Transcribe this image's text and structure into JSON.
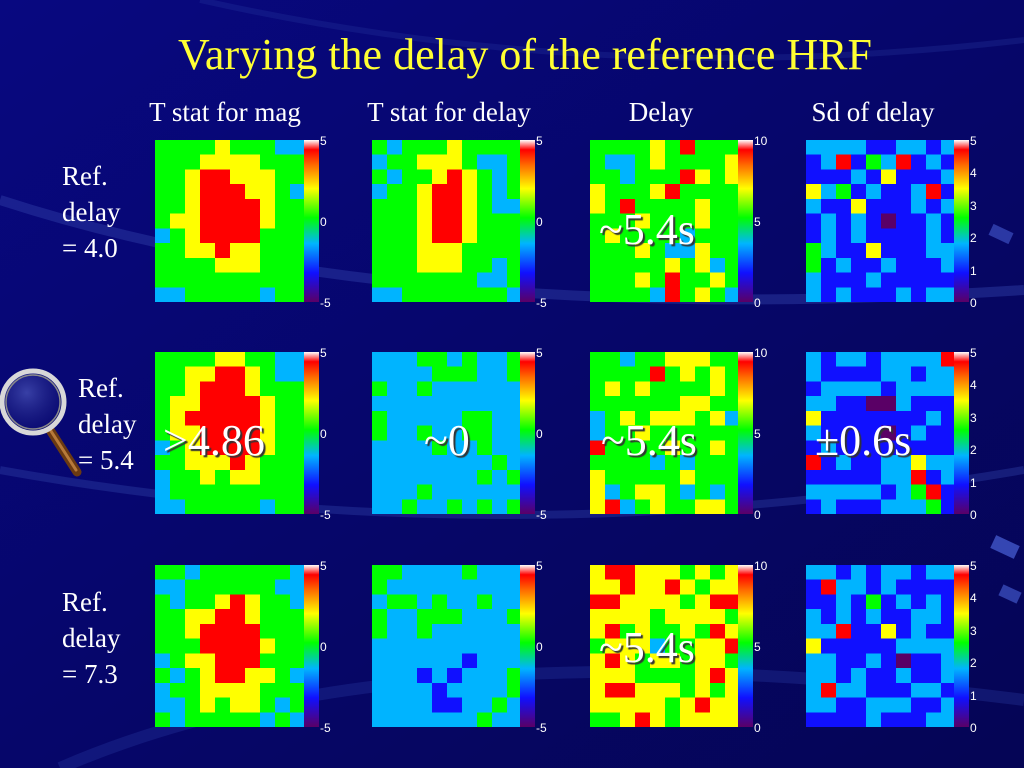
{
  "title": "Varying the delay of the reference HRF",
  "columns": [
    {
      "label": "T stat for mag",
      "ticks": [
        "5",
        "0",
        "-5"
      ]
    },
    {
      "label": "T stat for delay",
      "ticks": [
        "5",
        "0",
        "-5"
      ]
    },
    {
      "label": "Delay",
      "ticks": [
        "10",
        "5",
        "0"
      ]
    },
    {
      "label": "Sd of delay",
      "ticks": [
        "5",
        "4",
        "3",
        "2",
        "1",
        "0"
      ]
    }
  ],
  "rows": [
    {
      "label_lines": [
        "Ref.",
        "delay",
        "= 4.0"
      ]
    },
    {
      "label_lines": [
        "Ref.",
        "delay",
        "= 5.4"
      ]
    },
    {
      "label_lines": [
        "Ref.",
        "delay",
        "= 7.3"
      ]
    }
  ],
  "overlays": {
    "r0c2": "~5.4s",
    "r1c0": ">4.86",
    "r1c1": "~0",
    "r1c2": "~5.4s",
    "r1c3": "±0.6s",
    "r2c2": "~5.4s"
  },
  "colors": {
    "background": "#06066a",
    "title": "#ffff33",
    "text": "#ffffff",
    "colormap": [
      "#5a0066",
      "#1010ff",
      "#00b4ff",
      "#00ff00",
      "#ffff00",
      "#ff0000",
      "#e0e0e0"
    ]
  },
  "icons": {
    "magnifier": "magnifying-glass-icon"
  }
}
